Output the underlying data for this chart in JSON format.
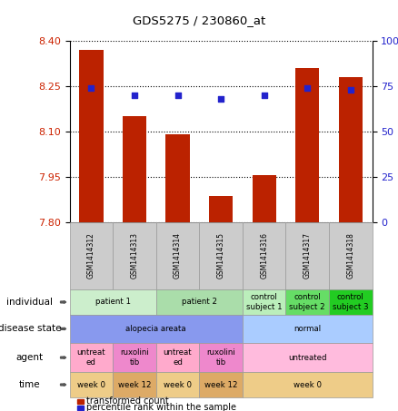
{
  "title": "GDS5275 / 230860_at",
  "samples": [
    "GSM1414312",
    "GSM1414313",
    "GSM1414314",
    "GSM1414315",
    "GSM1414316",
    "GSM1414317",
    "GSM1414318"
  ],
  "bar_values": [
    8.37,
    8.15,
    8.09,
    7.885,
    7.955,
    8.31,
    8.28
  ],
  "dot_values": [
    74,
    70,
    70,
    68,
    70,
    74,
    73
  ],
  "ylim_left": [
    7.8,
    8.4
  ],
  "ylim_right": [
    0,
    100
  ],
  "yticks_left": [
    7.8,
    7.95,
    8.1,
    8.25,
    8.4
  ],
  "yticks_right": [
    0,
    25,
    50,
    75,
    100
  ],
  "ytick_labels_right": [
    "0",
    "25",
    "50",
    "75",
    "100%"
  ],
  "bar_color": "#bb2200",
  "dot_color": "#2222cc",
  "bar_width": 0.55,
  "rows": {
    "individual": {
      "label": "individual",
      "spans": [
        {
          "cols": [
            0,
            1
          ],
          "text": "patient 1",
          "color": "#cceecc"
        },
        {
          "cols": [
            2,
            3
          ],
          "text": "patient 2",
          "color": "#aaddaa"
        },
        {
          "cols": [
            4
          ],
          "text": "control\nsubject 1",
          "color": "#bbeebb"
        },
        {
          "cols": [
            5
          ],
          "text": "control\nsubject 2",
          "color": "#66dd66"
        },
        {
          "cols": [
            6
          ],
          "text": "control\nsubject 3",
          "color": "#22cc22"
        }
      ]
    },
    "disease_state": {
      "label": "disease state",
      "spans": [
        {
          "cols": [
            0,
            1,
            2,
            3
          ],
          "text": "alopecia areata",
          "color": "#8899ee"
        },
        {
          "cols": [
            4,
            5,
            6
          ],
          "text": "normal",
          "color": "#aaccff"
        }
      ]
    },
    "agent": {
      "label": "agent",
      "spans": [
        {
          "cols": [
            0
          ],
          "text": "untreat\ned",
          "color": "#ffaacc"
        },
        {
          "cols": [
            1
          ],
          "text": "ruxolini\ntib",
          "color": "#ee88cc"
        },
        {
          "cols": [
            2
          ],
          "text": "untreat\ned",
          "color": "#ffaacc"
        },
        {
          "cols": [
            3
          ],
          "text": "ruxolini\ntib",
          "color": "#ee88cc"
        },
        {
          "cols": [
            4,
            5,
            6
          ],
          "text": "untreated",
          "color": "#ffbbdd"
        }
      ]
    },
    "time": {
      "label": "time",
      "spans": [
        {
          "cols": [
            0
          ],
          "text": "week 0",
          "color": "#eecc88"
        },
        {
          "cols": [
            1
          ],
          "text": "week 12",
          "color": "#ddaa66"
        },
        {
          "cols": [
            2
          ],
          "text": "week 0",
          "color": "#eecc88"
        },
        {
          "cols": [
            3
          ],
          "text": "week 12",
          "color": "#ddaa66"
        },
        {
          "cols": [
            4,
            5,
            6
          ],
          "text": "week 0",
          "color": "#eecc88"
        }
      ]
    }
  },
  "row_order": [
    "individual",
    "disease_state",
    "agent",
    "time"
  ],
  "row_labels": [
    "individual",
    "disease state",
    "agent",
    "time"
  ],
  "legend": [
    {
      "color": "#bb2200",
      "label": "transformed count"
    },
    {
      "color": "#2222cc",
      "label": "percentile rank within the sample"
    }
  ],
  "bg_color": "#ffffff"
}
